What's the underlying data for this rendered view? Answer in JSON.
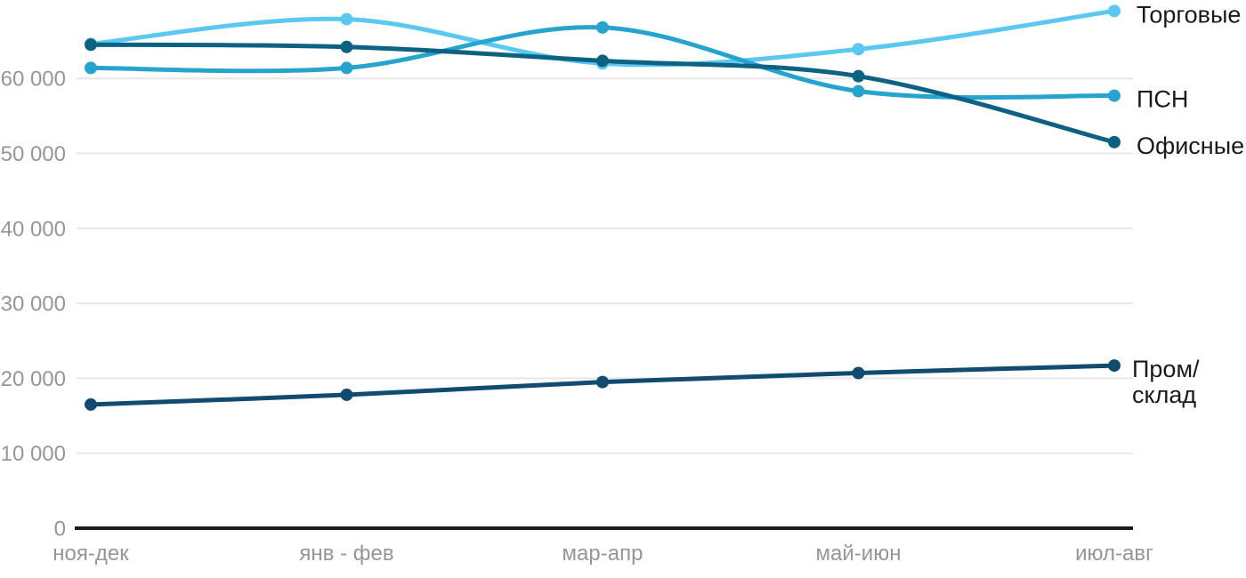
{
  "chart_data": {
    "type": "line",
    "categories": [
      "ноя-дек",
      "янв - фев",
      "мар-апр",
      "май-июн",
      "июл-авг"
    ],
    "series": [
      {
        "name": "Торговые",
        "label_lines": [
          "Торговые"
        ],
        "color": "#5BC8F1",
        "values": [
          64600,
          67900,
          62000,
          63900,
          69000
        ]
      },
      {
        "name": "ПСН",
        "label_lines": [
          "ПСН"
        ],
        "color": "#27A4CD",
        "values": [
          61400,
          61400,
          66800,
          58300,
          57700
        ]
      },
      {
        "name": "Офисные",
        "label_lines": [
          "Офисные"
        ],
        "color": "#0D6283",
        "values": [
          64500,
          64200,
          62350,
          60300,
          51500
        ]
      },
      {
        "name": "Пром/склад",
        "label_lines": [
          "Пром/",
          "склад"
        ],
        "color": "#114B70",
        "values": [
          16500,
          17800,
          19500,
          20700,
          21700
        ]
      }
    ],
    "y_ticks": [
      {
        "value": 0,
        "label": "0"
      },
      {
        "value": 10000,
        "label": "10 000"
      },
      {
        "value": 20000,
        "label": "20 000"
      },
      {
        "value": 30000,
        "label": "30 000"
      },
      {
        "value": 40000,
        "label": "40 000"
      },
      {
        "value": 50000,
        "label": "50 000"
      },
      {
        "value": 60000,
        "label": "60 000"
      }
    ],
    "ylim": [
      0,
      70000
    ],
    "grid": "horizontal",
    "legend_position": "right-of-line-ends",
    "smooth": true
  },
  "colors": {
    "background": "#FFFFFF",
    "gridline": "#E8E8E8",
    "axis_line": "#1A1A1A",
    "tick_label": "#969696",
    "series_label": "#1A1A1A"
  }
}
